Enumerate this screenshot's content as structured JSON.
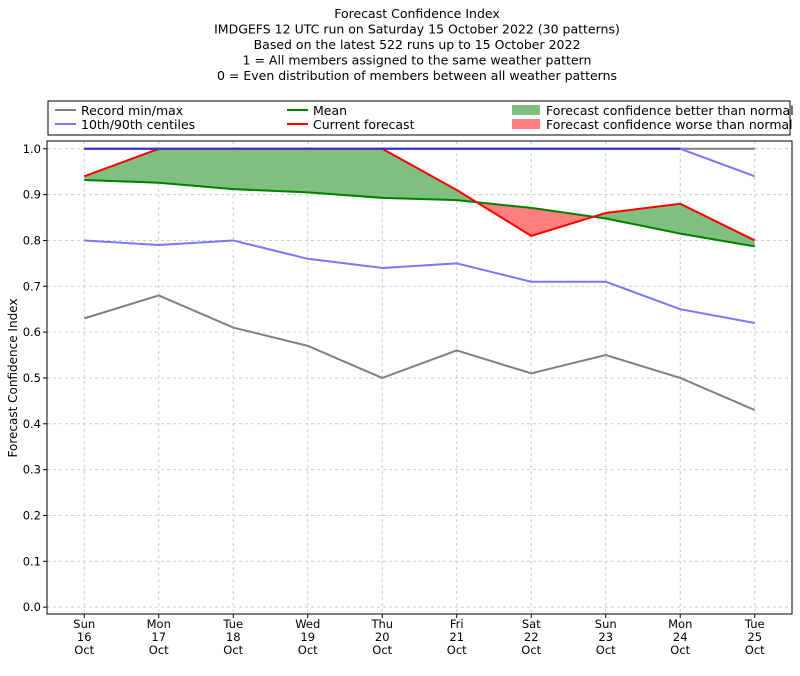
{
  "chart_data": {
    "type": "line",
    "title_lines": [
      "Forecast Confidence Index",
      "IMDGEFS 12 UTC run on Saturday 15 October 2022 (30 patterns)",
      "Based on the latest 522 runs up to 15 October 2022",
      "1 = All members assigned to the same weather pattern",
      "0 = Even distribution of members between all weather patterns"
    ],
    "ylabel": "Forecast Confidence Index",
    "xlabel": "",
    "categories": [
      [
        "Sun",
        "16",
        "Oct"
      ],
      [
        "Mon",
        "17",
        "Oct"
      ],
      [
        "Tue",
        "18",
        "Oct"
      ],
      [
        "Wed",
        "19",
        "Oct"
      ],
      [
        "Thu",
        "20",
        "Oct"
      ],
      [
        "Fri",
        "21",
        "Oct"
      ],
      [
        "Sat",
        "22",
        "Oct"
      ],
      [
        "Sun",
        "23",
        "Oct"
      ],
      [
        "Mon",
        "24",
        "Oct"
      ],
      [
        "Tue",
        "25",
        "Oct"
      ]
    ],
    "ylim": [
      -0.015,
      1.017
    ],
    "xlim": [
      -0.5,
      9.5
    ],
    "yticks": [
      "0.0",
      "0.1",
      "0.2",
      "0.3",
      "0.4",
      "0.5",
      "0.6",
      "0.7",
      "0.8",
      "0.9",
      "1.0"
    ],
    "grid": true,
    "legend_placement": "top, above plot",
    "series": [
      {
        "name": "Record min/max",
        "key": "record_min",
        "color": "#808080",
        "values": [
          0.63,
          0.68,
          0.61,
          0.57,
          0.5,
          0.56,
          0.51,
          0.55,
          0.5,
          0.43
        ]
      },
      {
        "name": "",
        "key": "record_max",
        "color": "#808080",
        "values": [
          1.0,
          1.0,
          1.0,
          1.0,
          1.0,
          1.0,
          1.0,
          1.0,
          1.0,
          1.0
        ]
      },
      {
        "name": "10th/90th centiles",
        "key": "p10",
        "color": "#7777ff",
        "values": [
          0.8,
          0.79,
          0.8,
          0.76,
          0.74,
          0.75,
          0.71,
          0.71,
          0.65,
          0.62
        ]
      },
      {
        "name": "",
        "key": "p90",
        "color": "#7777ff",
        "values": [
          1.0,
          1.0,
          1.0,
          1.0,
          1.0,
          1.0,
          1.0,
          1.0,
          1.0,
          0.94
        ]
      },
      {
        "name": "Mean",
        "key": "mean",
        "color": "#008000",
        "values": [
          0.932,
          0.926,
          0.912,
          0.905,
          0.893,
          0.888,
          0.871,
          0.848,
          0.815,
          0.787
        ]
      },
      {
        "name": "Current forecast",
        "key": "current",
        "color": "#ff0000",
        "values": [
          0.94,
          1.0,
          1.0,
          1.0,
          1.0,
          0.91,
          0.81,
          0.86,
          0.88,
          0.8
        ]
      }
    ],
    "fills": [
      {
        "name": "Forecast confidence better than normal",
        "color": "#7fbf7f"
      },
      {
        "name": "Forecast confidence worse than normal",
        "color": "#ff7f7f"
      }
    ]
  }
}
